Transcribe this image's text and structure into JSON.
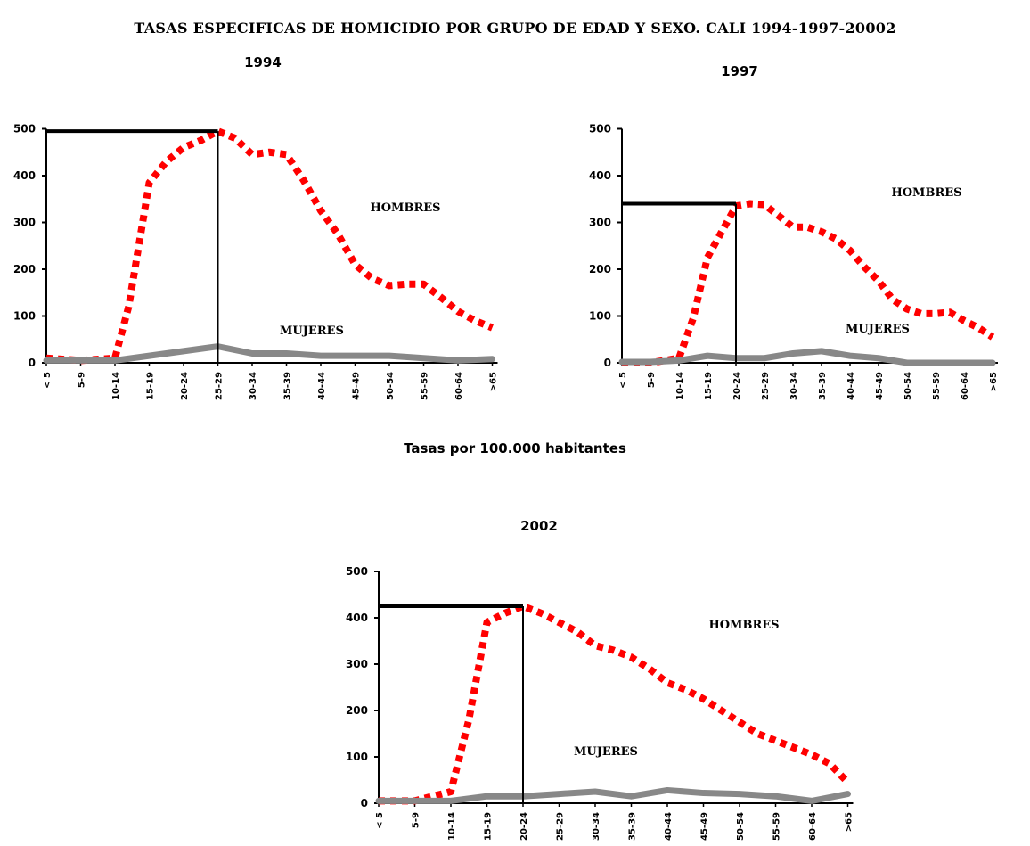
{
  "title": "TASAS ESPECIFICAS DE HOMICIDIO POR GRUPO DE EDAD Y SEXO. CALI 1994-1997-20002",
  "subtitle": "Tasas por 100.000 habitantes",
  "colors": {
    "hombres": "#ff0000",
    "mujeres": "#888888",
    "axis": "#000000"
  },
  "chart_data": [
    {
      "type": "line",
      "title": "1994",
      "categories": [
        "< 5",
        "5-9",
        "10-14",
        "15-19",
        "20-24",
        "25-29",
        "30-34",
        "35-39",
        "40-44",
        "45-49",
        "50-54",
        "55-59",
        "60-64",
        ">65"
      ],
      "yticks": [
        0,
        100,
        200,
        300,
        400,
        500
      ],
      "ylim": [
        0,
        500
      ],
      "series": [
        {
          "name": "HOMBRES",
          "x": [
            0,
            1,
            2,
            2.4,
            3,
            3.5,
            4,
            4.5,
            5,
            5.5,
            6,
            6.5,
            7,
            7.5,
            8,
            8.5,
            9,
            9.5,
            10,
            10.5,
            11,
            11.5,
            12,
            12.5,
            13
          ],
          "values": [
            10,
            5,
            10,
            120,
            385,
            430,
            460,
            475,
            495,
            480,
            445,
            450,
            445,
            390,
            325,
            275,
            210,
            180,
            165,
            168,
            168,
            140,
            110,
            90,
            75
          ]
        },
        {
          "name": "MUJERES",
          "x": [
            0,
            1,
            2,
            3,
            4,
            5,
            6,
            7,
            8,
            9,
            10,
            11,
            12,
            13
          ],
          "values": [
            5,
            5,
            5,
            15,
            25,
            35,
            20,
            20,
            15,
            15,
            15,
            10,
            5,
            8
          ]
        }
      ],
      "peak": {
        "category_index": 5,
        "value": 495
      }
    },
    {
      "type": "line",
      "title": "1997",
      "categories": [
        "< 5",
        "5-9",
        "10-14",
        "15-19",
        "20-24",
        "25-29",
        "30-34",
        "35-39",
        "40-44",
        "45-49",
        "50-54",
        "55-59",
        "60-64",
        ">65"
      ],
      "yticks": [
        0,
        100,
        200,
        300,
        400,
        500
      ],
      "ylim": [
        0,
        500
      ],
      "series": [
        {
          "name": "HOMBRES",
          "x": [
            0,
            1,
            2,
            2.5,
            3,
            3.5,
            4,
            4.5,
            5,
            6,
            6.5,
            7,
            7.5,
            8,
            8.5,
            9,
            9.5,
            10,
            10.5,
            11,
            11.5,
            12,
            12.5,
            13
          ],
          "values": [
            0,
            0,
            10,
            95,
            225,
            280,
            335,
            340,
            338,
            290,
            290,
            280,
            265,
            240,
            205,
            175,
            135,
            115,
            105,
            105,
            108,
            90,
            75,
            55
          ]
        },
        {
          "name": "MUJERES",
          "x": [
            0,
            1,
            2,
            3,
            4,
            5,
            6,
            7,
            8,
            9,
            10,
            11,
            12,
            13
          ],
          "values": [
            2,
            2,
            5,
            15,
            10,
            10,
            20,
            25,
            15,
            10,
            0,
            0,
            0,
            0
          ]
        }
      ],
      "peak": {
        "category_index": 4,
        "value": 340
      }
    },
    {
      "type": "line",
      "title": "2002",
      "categories": [
        "< 5",
        "5-9",
        "10-14",
        "15-19",
        "20-24",
        "25-29",
        "30-34",
        "35-39",
        "40-44",
        "45-49",
        "50-54",
        "55-59",
        "60-64",
        ">65"
      ],
      "yticks": [
        0,
        100,
        200,
        300,
        400,
        500
      ],
      "ylim": [
        0,
        500
      ],
      "series": [
        {
          "name": "HOMBRES",
          "x": [
            0,
            1,
            2,
            2.5,
            3,
            3.5,
            4,
            4.5,
            5,
            5.5,
            6,
            6.5,
            7,
            7.5,
            8,
            8.5,
            9,
            9.5,
            10,
            10.5,
            11,
            11.5,
            12,
            12.5,
            13
          ],
          "values": [
            5,
            5,
            25,
            180,
            390,
            410,
            425,
            410,
            390,
            370,
            340,
            330,
            315,
            290,
            260,
            245,
            225,
            200,
            175,
            150,
            135,
            120,
            105,
            85,
            45
          ]
        },
        {
          "name": "MUJERES",
          "x": [
            0,
            1,
            2,
            3,
            4,
            5,
            6,
            7,
            8,
            9,
            10,
            11,
            12,
            13
          ],
          "values": [
            5,
            5,
            5,
            15,
            15,
            20,
            25,
            15,
            28,
            22,
            20,
            15,
            5,
            20
          ]
        }
      ],
      "peak": {
        "category_index": 4,
        "value": 425
      }
    }
  ]
}
